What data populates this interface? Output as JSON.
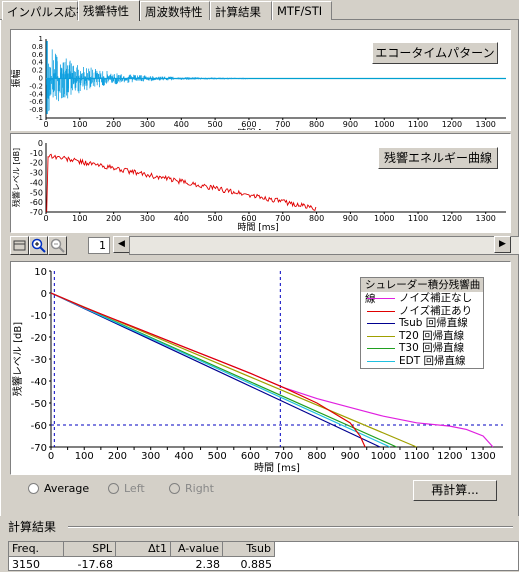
{
  "tabs": [
    {
      "label": "インパルス応答"
    },
    {
      "label": "残響特性"
    },
    {
      "label": "周波数特性"
    },
    {
      "label": "計算結果"
    },
    {
      "label": "MTF/STI"
    }
  ],
  "plot1": {
    "button_label": "エコータイムパターン",
    "ylabel": "振幅",
    "xlabel": "時間 [ms]",
    "yticks": [
      "1",
      "0.8",
      "0.6",
      "0.4",
      "0.2",
      "0",
      "-0.2",
      "-0.4",
      "-0.6",
      "-0.8",
      "-1"
    ],
    "xticks": [
      "0",
      "100",
      "200",
      "300",
      "400",
      "500",
      "600",
      "700",
      "800",
      "900",
      "1000",
      "1100",
      "1200",
      "1300"
    ]
  },
  "plot2": {
    "button_label": "残響エネルギー曲線",
    "ylabel": "残響レベル [dB]",
    "xlabel": "時間 [ms]",
    "yticks": [
      "0",
      "-10",
      "-20",
      "-30",
      "-40",
      "-50",
      "-60",
      "-70"
    ],
    "xticks": [
      "0",
      "100",
      "200",
      "300",
      "400",
      "500",
      "600",
      "700",
      "800",
      "900",
      "1000",
      "1100",
      "1200",
      "1300"
    ]
  },
  "toolbar": {
    "page_value": "1"
  },
  "chart_data": {
    "type": "line",
    "xlabel": "時間 [ms]",
    "ylabel": "残響レベル [dB]",
    "xlim": [
      0,
      1360
    ],
    "ylim": [
      -70,
      10
    ],
    "xticks": [
      "0",
      "50",
      "100",
      "150",
      "200",
      "250",
      "300",
      "350",
      "400",
      "450",
      "500",
      "550",
      "600",
      "650",
      "700",
      "750",
      "800",
      "850",
      "900",
      "950",
      "1000",
      "1050",
      "1100",
      "1150",
      "1200",
      "1250",
      "1300"
    ],
    "yticks": [
      "10",
      "0",
      "-10",
      "-20",
      "-30",
      "-40",
      "-50",
      "-60",
      "-70"
    ],
    "legend_title": "シュレーダー積分残響曲線",
    "legend_position": "top-right",
    "colors": {
      "ノイズ補正なし": "#e020e0",
      "ノイズ補正あり": "#e00000",
      "Tsub 回帰直線": "#000090",
      "T20 回帰直線": "#a0a000",
      "T30 回帰直線": "#20a020",
      "EDT 回帰直線": "#20c0e0"
    },
    "series": [
      {
        "name": "ノイズ補正なし",
        "x": [
          0,
          100,
          200,
          300,
          400,
          500,
          600,
          700,
          800,
          900,
          1000,
          1100,
          1200,
          1250,
          1300,
          1330
        ],
        "y": [
          0,
          -6.5,
          -12.5,
          -18.5,
          -24.5,
          -30.5,
          -36.5,
          -43,
          -48,
          -52,
          -56,
          -59,
          -60.5,
          -62,
          -65,
          -70
        ]
      },
      {
        "name": "ノイズ補正あり",
        "x": [
          0,
          100,
          200,
          300,
          400,
          500,
          600,
          700,
          800,
          900,
          930,
          945
        ],
        "y": [
          0,
          -6.5,
          -12.5,
          -18.5,
          -24.5,
          -30.5,
          -36.5,
          -43,
          -50,
          -59,
          -65,
          -70
        ]
      },
      {
        "name": "Tsub 回帰直線",
        "x": [
          0,
          990
        ],
        "y": [
          0,
          -70
        ]
      },
      {
        "name": "T20 回帰直線",
        "x": [
          0,
          1100
        ],
        "y": [
          0,
          -70
        ]
      },
      {
        "name": "T30 回帰直線",
        "x": [
          0,
          1040
        ],
        "y": [
          0,
          -70
        ]
      },
      {
        "name": "EDT 回帰直線",
        "x": [
          0,
          1020
        ],
        "y": [
          0,
          -70
        ]
      }
    ],
    "markers": {
      "vlines_ms": [
        10,
        690
      ],
      "hline_db": -60
    }
  },
  "options": {
    "average_label": "Average",
    "left_label": "Left",
    "right_label": "Right"
  },
  "recalc_label": "再計算...",
  "results": {
    "title": "計算結果",
    "headers": [
      "Freq.",
      "SPL",
      "Δt1",
      "A-value",
      "Tsub"
    ],
    "row": [
      "3150",
      "-17.68",
      "",
      "2.38",
      "0.885"
    ]
  }
}
